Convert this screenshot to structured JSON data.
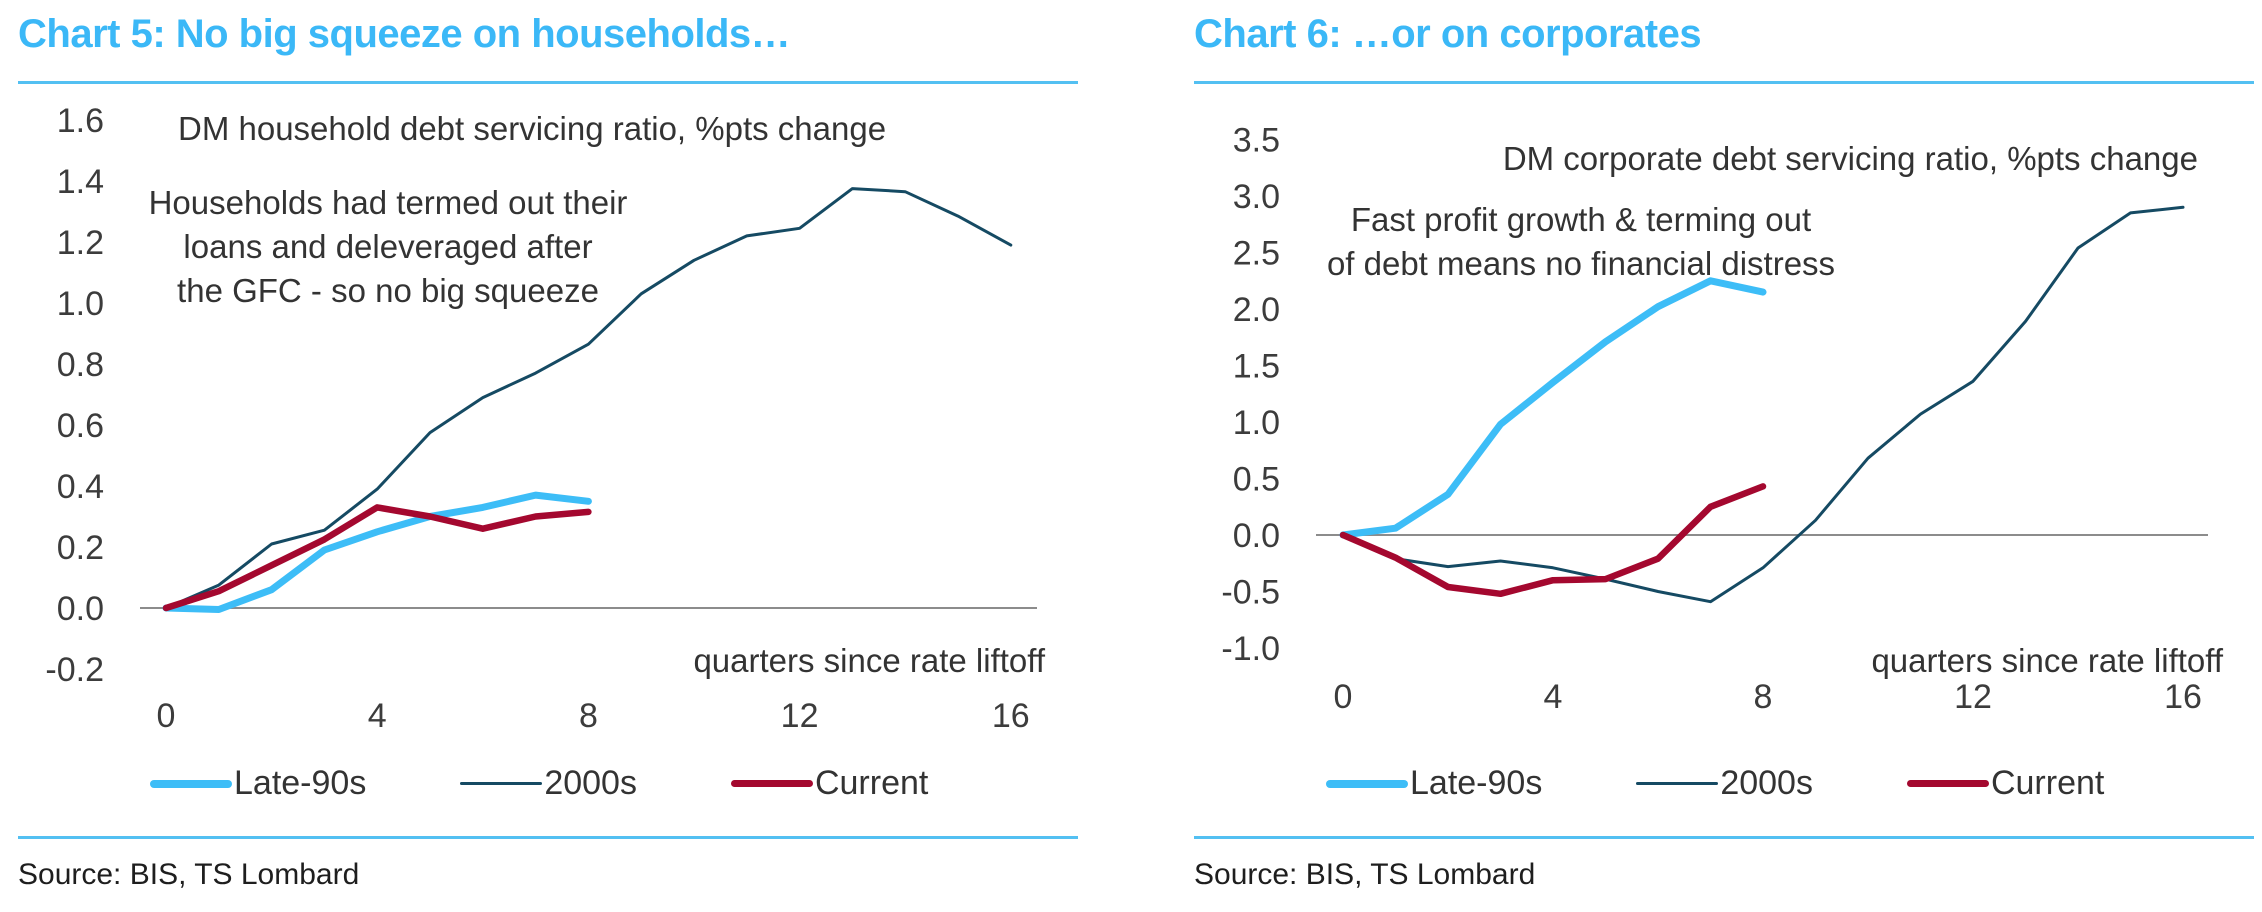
{
  "charts": [
    {
      "title": "Chart 5: No big squeeze on households…",
      "source": "Source: BIS, TS Lombard",
      "subtitle": "DM household debt servicing ratio, %pts change",
      "annotation": [
        "Households had termed out their",
        "loans and deleveraged after",
        "the GFC - so no big squeeze"
      ],
      "xlabel": "quarters since rate liftoff",
      "legend": [
        "Late-90s",
        "2000s",
        "Current"
      ]
    },
    {
      "title": "Chart 6: …or on corporates",
      "source": "Source: BIS, TS Lombard",
      "subtitle": "DM corporate debt servicing ratio, %pts change",
      "annotation": [
        "Fast profit growth & terming out",
        "of debt means no financial distress"
      ],
      "xlabel": "quarters since rate liftoff",
      "legend": [
        "Late-90s",
        "2000s",
        "Current"
      ]
    }
  ],
  "colors": {
    "title": "#3bb8f7",
    "late90s": "#3dbdf7",
    "s2000s": "#154a63",
    "current": "#a4082f",
    "zero_line": "#8c8c8c"
  },
  "chart_data": [
    {
      "type": "line",
      "title": "Chart 5: No big squeeze on households…",
      "subtitle": "DM household debt servicing ratio, %pts change",
      "xlabel": "quarters since rate liftoff",
      "ylabel": "",
      "xlim": [
        0,
        16
      ],
      "ylim": [
        -0.2,
        1.6
      ],
      "xticks": [
        0,
        4,
        8,
        12,
        16
      ],
      "xtick_labels": [
        "0",
        "4",
        "8",
        "12",
        "16"
      ],
      "yticks": [
        -0.2,
        0.0,
        0.2,
        0.4,
        0.6,
        0.8,
        1.0,
        1.2,
        1.4,
        1.6
      ],
      "ytick_labels": [
        "-0.2",
        "0.0",
        "0.2",
        "0.4",
        "0.6",
        "0.8",
        "1.0",
        "1.2",
        "1.4",
        "1.6"
      ],
      "grid": false,
      "legend_position": "bottom",
      "annotations": [
        "DM household debt servicing ratio, %pts change",
        "Households had termed out their loans and deleveraged after the GFC - so no big squeeze"
      ],
      "series": [
        {
          "name": "Late-90s",
          "key": "late90s",
          "x": [
            0,
            1,
            2,
            3,
            4,
            5,
            6,
            7,
            8
          ],
          "values": [
            0.0,
            -0.005,
            0.06,
            0.19,
            0.25,
            0.3,
            0.33,
            0.37,
            0.35
          ]
        },
        {
          "name": "2000s",
          "key": "s2000s",
          "x": [
            0,
            1,
            2,
            3,
            4,
            5,
            6,
            7,
            8,
            9,
            10,
            11,
            12,
            13,
            14,
            15,
            16
          ],
          "values": [
            0.0,
            0.075,
            0.21,
            0.255,
            0.39,
            0.575,
            0.69,
            0.77,
            0.865,
            1.03,
            1.14,
            1.22,
            1.245,
            1.375,
            1.365,
            1.285,
            1.19
          ]
        },
        {
          "name": "Current",
          "key": "current",
          "x": [
            0,
            1,
            2,
            3,
            4,
            5,
            6,
            7,
            8
          ],
          "values": [
            0.0,
            0.055,
            0.14,
            0.225,
            0.33,
            0.3,
            0.26,
            0.3,
            0.315
          ]
        }
      ]
    },
    {
      "type": "line",
      "title": "Chart 6: …or on corporates",
      "subtitle": "DM corporate debt servicing ratio, %pts change",
      "xlabel": "quarters since rate liftoff",
      "ylabel": "",
      "xlim": [
        0,
        16
      ],
      "ylim": [
        -1.0,
        3.5
      ],
      "xticks": [
        0,
        4,
        8,
        12,
        16
      ],
      "xtick_labels": [
        "0",
        "4",
        "8",
        "12",
        "16"
      ],
      "yticks": [
        -1.0,
        -0.5,
        0.0,
        0.5,
        1.0,
        1.5,
        2.0,
        2.5,
        3.0,
        3.5
      ],
      "ytick_labels": [
        "-1.0",
        "-0.5",
        "0.0",
        "0.5",
        "1.0",
        "1.5",
        "2.0",
        "2.5",
        "3.0",
        "3.5"
      ],
      "grid": false,
      "legend_position": "bottom",
      "annotations": [
        "DM corporate debt servicing ratio, %pts change",
        "Fast profit growth & terming out of debt means no financial distress"
      ],
      "series": [
        {
          "name": "Late-90s",
          "key": "late90s",
          "x": [
            0,
            1,
            2,
            3,
            4,
            5,
            6,
            7,
            8
          ],
          "values": [
            0.0,
            0.06,
            0.36,
            0.98,
            1.35,
            1.71,
            2.02,
            2.25,
            2.15
          ]
        },
        {
          "name": "2000s",
          "key": "s2000s",
          "x": [
            0,
            1,
            2,
            3,
            4,
            5,
            6,
            7,
            8,
            9,
            10,
            11,
            12,
            13,
            14,
            15,
            16
          ],
          "values": [
            0.0,
            -0.21,
            -0.28,
            -0.23,
            -0.29,
            -0.39,
            -0.5,
            -0.59,
            -0.29,
            0.13,
            0.68,
            1.07,
            1.36,
            1.89,
            2.54,
            2.85,
            2.9
          ]
        },
        {
          "name": "Current",
          "key": "current",
          "x": [
            0,
            1,
            2,
            3,
            4,
            5,
            6,
            7,
            8
          ],
          "values": [
            0.0,
            -0.2,
            -0.46,
            -0.52,
            -0.4,
            -0.39,
            -0.21,
            0.25,
            0.43
          ]
        }
      ]
    }
  ]
}
